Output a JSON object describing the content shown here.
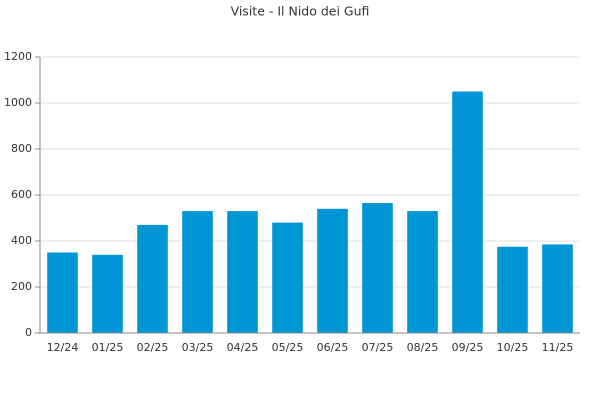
{
  "chart_data": {
    "type": "bar",
    "title": "Visite - Il Nido dei Gufi",
    "categories": [
      "12/24",
      "01/25",
      "02/25",
      "03/25",
      "04/25",
      "05/25",
      "06/25",
      "07/25",
      "08/25",
      "09/25",
      "10/25",
      "11/25"
    ],
    "values": [
      350,
      340,
      470,
      530,
      530,
      480,
      540,
      565,
      530,
      1050,
      375,
      385
    ],
    "color": "#0096d6",
    "ylim": [
      0,
      1200
    ],
    "yticks": [
      0,
      200,
      400,
      600,
      800,
      1000,
      1200
    ],
    "grid": true
  }
}
